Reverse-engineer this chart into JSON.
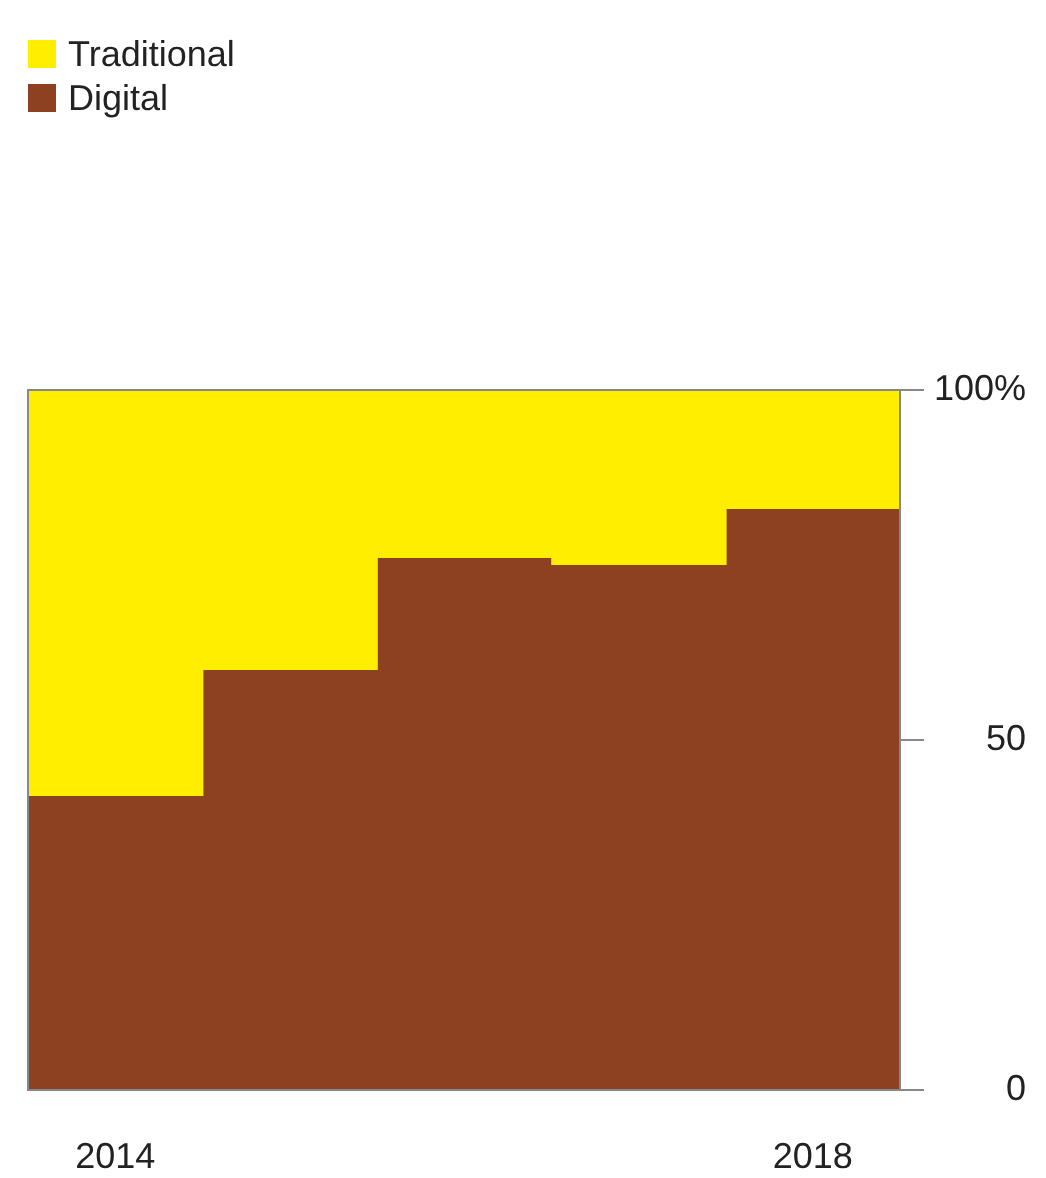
{
  "chart_data": {
    "type": "bar",
    "stacked": true,
    "categories": [
      "2014",
      null,
      null,
      null,
      "2018"
    ],
    "series": [
      {
        "name": "Digital",
        "color": "#8e4120",
        "values": [
          42,
          60,
          76,
          75,
          83
        ]
      },
      {
        "name": "Traditional",
        "color": "#ffee00",
        "values": [
          58,
          40,
          24,
          25,
          17
        ]
      }
    ],
    "ylim": [
      0,
      100
    ],
    "yticks": [
      {
        "value": 0,
        "label": "0"
      },
      {
        "value": 50,
        "label": "50"
      },
      {
        "value": 100,
        "label": "100%"
      }
    ],
    "legend": "top left"
  }
}
